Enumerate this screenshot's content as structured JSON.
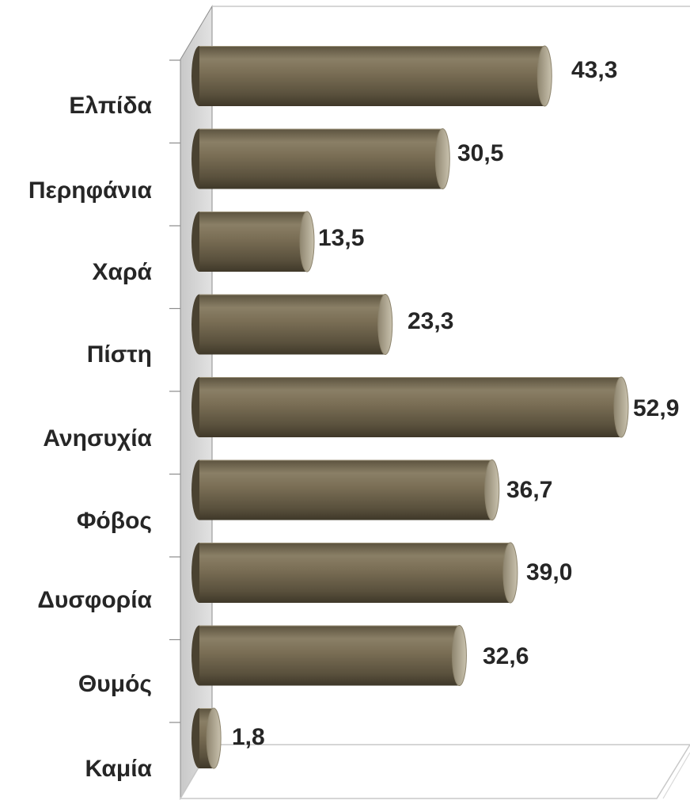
{
  "chart_data": {
    "type": "bar",
    "orientation": "horizontal",
    "title": "",
    "xlabel": "",
    "ylabel": "",
    "categories": [
      "Ελπίδα",
      "Περηφάνια",
      "Χαρά",
      "Πίστη",
      "Ανησυχία",
      "Φόβος",
      "Δυσφορία",
      "Θυμός",
      "Καμία"
    ],
    "values": [
      43.3,
      30.5,
      13.5,
      23.3,
      52.9,
      36.7,
      39.0,
      32.6,
      1.8
    ],
    "value_labels": [
      "43,3",
      "30,5",
      "13,5",
      "23,3",
      "52,9",
      "36,7",
      "39,0",
      "32,6",
      "1,8"
    ],
    "xlim": [
      0,
      60
    ],
    "grid": false,
    "legend": "none",
    "style": "3d-cylinder"
  },
  "colors": {
    "bar_fill": "#7a6e55",
    "bar_dark": "#4a4231",
    "bar_light": "#a89e85",
    "wall": "#d6d6d6",
    "axis_line": "#8c8c8c",
    "text": "#262626"
  }
}
